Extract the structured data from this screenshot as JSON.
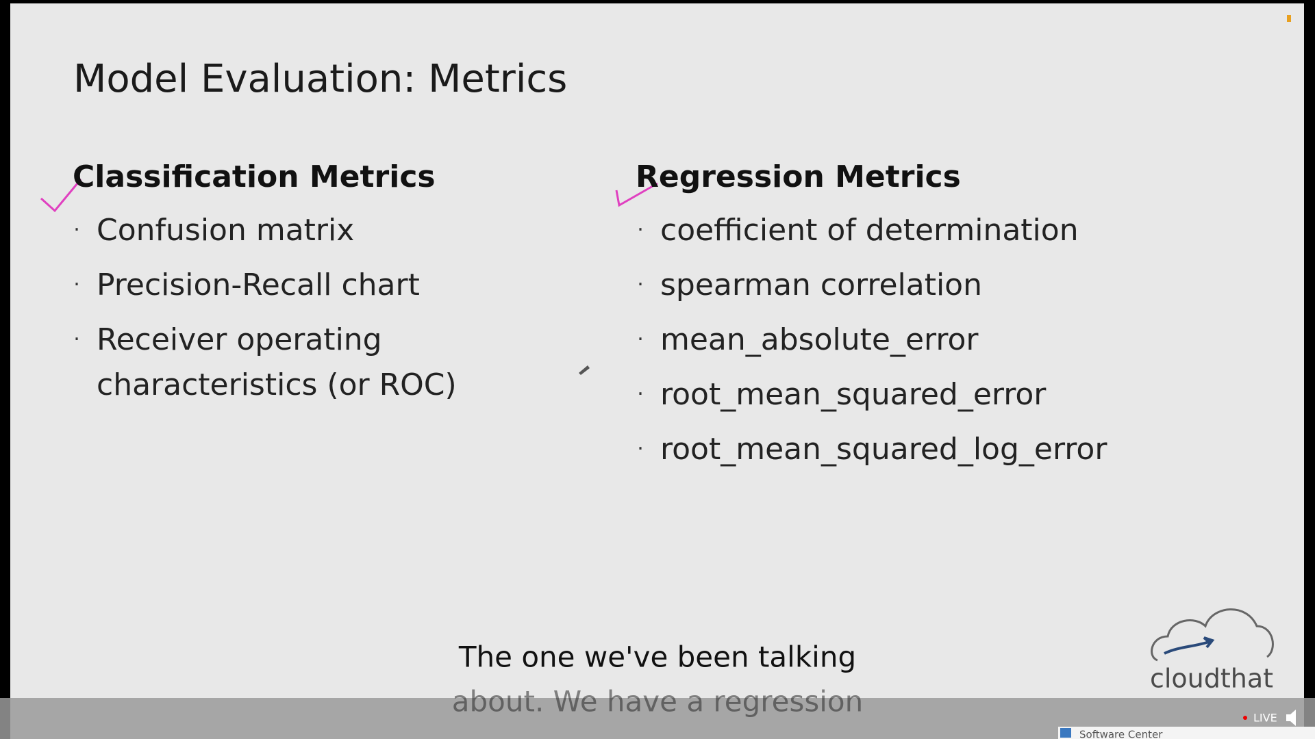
{
  "slide": {
    "title": "Model Evaluation: Metrics",
    "columns": [
      {
        "heading": "Classification Metrics",
        "items": [
          [
            "Confusion matrix"
          ],
          [
            "Precision-Recall chart"
          ],
          [
            "Receiver operating",
            "characteristics (or ROC)"
          ]
        ]
      },
      {
        "heading": "Regression Metrics",
        "items": [
          [
            "coefficient of determination"
          ],
          [
            "spearman correlation"
          ],
          [
            "mean_absolute_error"
          ],
          [
            "root_mean_squared_error"
          ],
          [
            "root_mean_squared_log_error"
          ]
        ]
      }
    ],
    "logo": "cloudthat"
  },
  "caption": [
    "The one we've been talking",
    "about. We have a regression"
  ],
  "player": {
    "live": "LIVE",
    "taskbar": "Software Center"
  }
}
